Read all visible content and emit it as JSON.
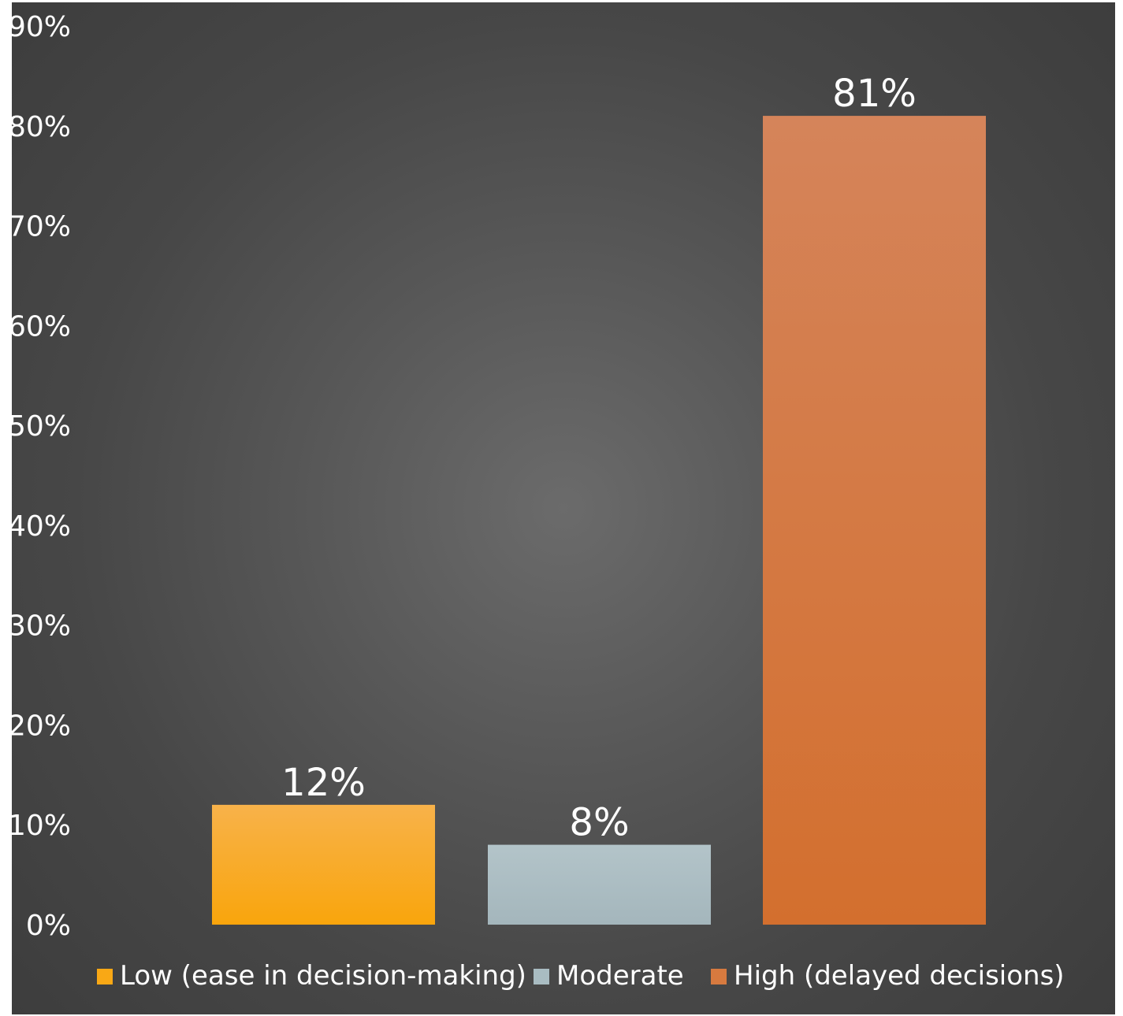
{
  "chart_data": {
    "type": "bar",
    "categories": [
      "Low (ease in decision-making)",
      "Moderate",
      "High (delayed decisions)"
    ],
    "values": [
      12,
      8,
      81
    ],
    "value_labels": [
      "12%",
      "8%",
      "81%"
    ],
    "colors": [
      "#f9a815",
      "#a9bcc2",
      "#d77a3f"
    ],
    "title": "",
    "xlabel": "",
    "ylabel": "",
    "ylim": [
      0,
      90
    ],
    "yticks": [
      0,
      10,
      20,
      30,
      40,
      50,
      60,
      70,
      80,
      90
    ],
    "ytick_labels": [
      "0%",
      "10%",
      "20%",
      "30%",
      "40%",
      "50%",
      "60%",
      "70%",
      "80%",
      "90%"
    ],
    "grid": false,
    "legend": {
      "position": "bottom",
      "entries": [
        "Low (ease in decision-making)",
        "Moderate",
        "High (delayed decisions)"
      ]
    },
    "background": "#4a4a4a"
  }
}
